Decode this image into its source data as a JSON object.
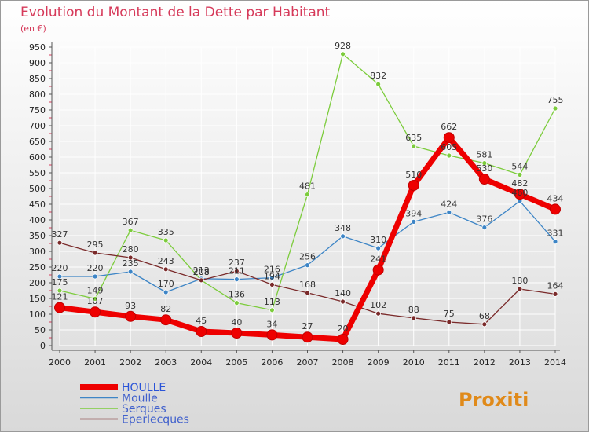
{
  "header": {
    "title": "Evolution du Montant de la Dette par Habitant",
    "subtitle": "(en €)"
  },
  "logo": {
    "text": "Proxiti"
  },
  "colors": {
    "background_top": "#ffffff",
    "background_bottom": "#d9d9d9",
    "title": "#d63a5a",
    "axis": "#555555",
    "grid": "#ffffff"
  },
  "chart_data": {
    "type": "line",
    "x": [
      "2000",
      "2001",
      "2002",
      "2003",
      "2004",
      "2005",
      "2006",
      "2007",
      "2008",
      "2009",
      "2010",
      "2011",
      "2012",
      "2013",
      "2014"
    ],
    "ylim": [
      0,
      950
    ],
    "yticks": [
      0,
      50,
      100,
      150,
      200,
      250,
      300,
      350,
      400,
      450,
      500,
      550,
      600,
      650,
      700,
      750,
      800,
      850,
      900,
      950
    ],
    "title": "Evolution du Montant de la Dette par Habitant",
    "ylabel": "(en €)",
    "legend_position": "bottom-left",
    "series": [
      {
        "name": "HOULLE",
        "color": "#ee0000",
        "emphasis": true,
        "values": [
          121,
          107,
          93,
          82,
          45,
          40,
          34,
          27,
          20,
          241,
          510,
          662,
          530,
          482,
          434
        ]
      },
      {
        "name": "Moulle",
        "color": "#3d85c6",
        "values": [
          220,
          220,
          235,
          170,
          213,
          211,
          216,
          256,
          348,
          310,
          394,
          424,
          376,
          460,
          331
        ]
      },
      {
        "name": "Serques",
        "color": "#7ccc3c",
        "values": [
          175,
          149,
          367,
          335,
          208,
          136,
          113,
          481,
          928,
          832,
          635,
          605,
          581,
          544,
          755
        ]
      },
      {
        "name": "Eperlecques",
        "color": "#7a2a2a",
        "values": [
          327,
          295,
          280,
          243,
          208,
          237,
          194,
          168,
          140,
          102,
          88,
          75,
          68,
          180,
          164
        ]
      }
    ]
  }
}
